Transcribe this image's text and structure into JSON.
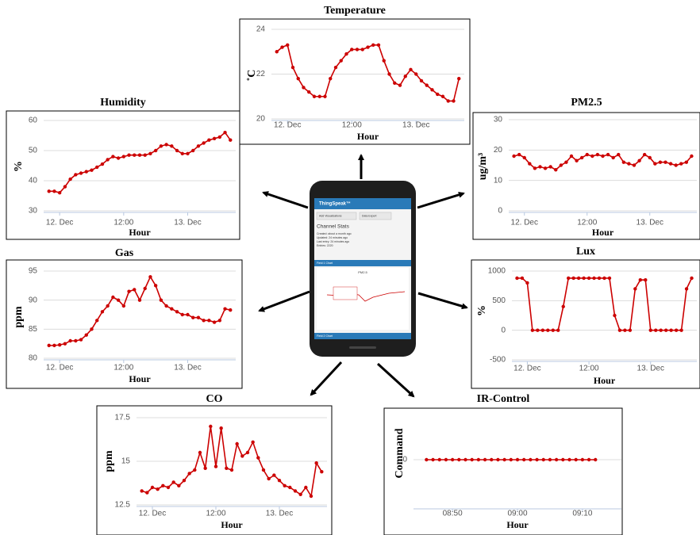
{
  "chart_data": [
    {
      "type": "line",
      "title": "Temperature",
      "xlabel": "Hour",
      "ylabel": "˚C",
      "x": [
        -2,
        -1,
        0,
        1,
        2,
        3,
        4,
        5,
        6,
        7,
        8,
        9,
        10,
        11,
        12,
        13,
        14,
        15,
        16,
        17,
        18,
        19,
        20,
        21,
        22,
        23,
        24,
        25,
        26,
        27,
        28,
        29,
        30,
        31,
        32
      ],
      "series": [
        {
          "color": "#cc0000",
          "values": [
            23.0,
            23.2,
            23.3,
            22.3,
            21.8,
            21.4,
            21.2,
            21.0,
            21.0,
            21.0,
            21.8,
            22.3,
            22.6,
            22.9,
            23.1,
            23.1,
            23.1,
            23.2,
            23.3,
            23.3,
            22.6,
            22.0,
            21.6,
            21.5,
            21.9,
            22.2,
            22.0,
            21.7,
            21.5,
            21.3,
            21.1,
            21.0,
            20.8,
            20.8,
            21.8
          ]
        }
      ],
      "xlim": [
        -3,
        33
      ],
      "ylim": [
        20,
        24
      ],
      "xticks": [
        {
          "value": 0,
          "label": "12. Dec"
        },
        {
          "value": 12,
          "label": "12:00"
        },
        {
          "value": 24,
          "label": "13. Dec"
        }
      ],
      "yticks": [
        20,
        22,
        24
      ],
      "grid": true
    },
    {
      "type": "line",
      "title": "Humidity",
      "xlabel": "Hour",
      "ylabel": "%",
      "x": [
        -2,
        -1,
        0,
        1,
        2,
        3,
        4,
        5,
        6,
        7,
        8,
        9,
        10,
        11,
        12,
        13,
        14,
        15,
        16,
        17,
        18,
        19,
        20,
        21,
        22,
        23,
        24,
        25,
        26,
        27,
        28,
        29,
        30,
        31,
        32
      ],
      "series": [
        {
          "color": "#cc0000",
          "values": [
            36.5,
            36.5,
            36,
            38,
            40.5,
            42,
            42.5,
            43,
            43.5,
            44.5,
            45.5,
            47,
            48,
            47.5,
            48,
            48.5,
            48.5,
            48.5,
            48.5,
            49,
            50,
            51.5,
            52,
            51.5,
            50,
            49,
            49,
            50,
            51.5,
            52.5,
            53.5,
            54,
            54.5,
            56,
            53.5
          ]
        }
      ],
      "xlim": [
        -3,
        33
      ],
      "ylim": [
        30,
        60
      ],
      "xticks": [
        {
          "value": 0,
          "label": "12. Dec"
        },
        {
          "value": 12,
          "label": "12:00"
        },
        {
          "value": 24,
          "label": "13. Dec"
        }
      ],
      "yticks": [
        30,
        40,
        50,
        60
      ],
      "grid": true
    },
    {
      "type": "line",
      "title": "PM2.5",
      "xlabel": "Hour",
      "ylabel": "ug/m³",
      "x": [
        -2,
        -1,
        0,
        1,
        2,
        3,
        4,
        5,
        6,
        7,
        8,
        9,
        10,
        11,
        12,
        13,
        14,
        15,
        16,
        17,
        18,
        19,
        20,
        21,
        22,
        23,
        24,
        25,
        26,
        27,
        28,
        29,
        30,
        31,
        32
      ],
      "series": [
        {
          "color": "#cc0000",
          "values": [
            18,
            18.5,
            17.5,
            15.5,
            14,
            14.5,
            14,
            14.5,
            13.5,
            15,
            16,
            18,
            16.5,
            17.5,
            18.5,
            18,
            18.5,
            18,
            18.5,
            17.5,
            18.5,
            16,
            15.5,
            15,
            16.5,
            18.5,
            17.5,
            15.5,
            16,
            16,
            15.5,
            15,
            15.5,
            16,
            18
          ]
        }
      ],
      "xlim": [
        -3,
        33
      ],
      "ylim": [
        0,
        30
      ],
      "xticks": [
        {
          "value": 0,
          "label": "12. Dec"
        },
        {
          "value": 12,
          "label": "12:00"
        },
        {
          "value": 24,
          "label": "13. Dec"
        }
      ],
      "yticks": [
        0,
        10,
        20,
        30
      ],
      "grid": true
    },
    {
      "type": "line",
      "title": "Gas",
      "xlabel": "Hour",
      "ylabel": "ppm",
      "x": [
        -2,
        -1,
        0,
        1,
        2,
        3,
        4,
        5,
        6,
        7,
        8,
        9,
        10,
        11,
        12,
        13,
        14,
        15,
        16,
        17,
        18,
        19,
        20,
        21,
        22,
        23,
        24,
        25,
        26,
        27,
        28,
        29,
        30,
        31,
        32
      ],
      "series": [
        {
          "color": "#cc0000",
          "values": [
            82.2,
            82.2,
            82.3,
            82.5,
            83,
            83,
            83.2,
            84,
            85,
            86.5,
            88,
            89,
            90.5,
            90,
            89,
            91.5,
            91.8,
            90,
            92,
            94,
            92.5,
            90,
            89,
            88.5,
            88,
            87.5,
            87.5,
            87,
            87,
            86.5,
            86.5,
            86.2,
            86.5,
            88.5,
            88.3
          ]
        }
      ],
      "xlim": [
        -3,
        33
      ],
      "ylim": [
        80,
        95
      ],
      "xticks": [
        {
          "value": 0,
          "label": "12. Dec"
        },
        {
          "value": 12,
          "label": "12:00"
        },
        {
          "value": 24,
          "label": "13. Dec"
        }
      ],
      "yticks": [
        80,
        85,
        90,
        95
      ],
      "grid": true
    },
    {
      "type": "line",
      "title": "Lux",
      "xlabel": "Hour",
      "ylabel": "%",
      "x": [
        -2,
        -1,
        0,
        1,
        2,
        3,
        4,
        5,
        6,
        7,
        8,
        9,
        10,
        11,
        12,
        13,
        14,
        15,
        16,
        17,
        18,
        19,
        20,
        21,
        22,
        23,
        24,
        25,
        26,
        27,
        28,
        29,
        30,
        31,
        32
      ],
      "series": [
        {
          "color": "#cc0000",
          "values": [
            880,
            880,
            800,
            0,
            0,
            0,
            0,
            0,
            0,
            400,
            880,
            880,
            880,
            880,
            880,
            880,
            880,
            880,
            880,
            250,
            0,
            0,
            0,
            700,
            850,
            850,
            0,
            0,
            0,
            0,
            0,
            0,
            0,
            700,
            880
          ]
        }
      ],
      "xlim": [
        -3,
        33
      ],
      "ylim": [
        -500,
        1000
      ],
      "xticks": [
        {
          "value": 0,
          "label": "12. Dec"
        },
        {
          "value": 12,
          "label": "12:00"
        },
        {
          "value": 24,
          "label": "13. Dec"
        }
      ],
      "yticks": [
        -500,
        0,
        500,
        1000
      ],
      "grid": true
    },
    {
      "type": "line",
      "title": "CO",
      "xlabel": "Hour",
      "ylabel": "ppm",
      "x": [
        -2,
        -1,
        0,
        1,
        2,
        3,
        4,
        5,
        6,
        7,
        8,
        9,
        10,
        11,
        12,
        13,
        14,
        15,
        16,
        17,
        18,
        19,
        20,
        21,
        22,
        23,
        24,
        25,
        26,
        27,
        28,
        29,
        30,
        31,
        32
      ],
      "series": [
        {
          "color": "#cc0000",
          "values": [
            13.3,
            13.2,
            13.5,
            13.4,
            13.6,
            13.5,
            13.8,
            13.6,
            13.9,
            14.3,
            14.5,
            15.5,
            14.6,
            17,
            14.7,
            16.9,
            14.6,
            14.5,
            16,
            15.3,
            15.5,
            16.1,
            15.2,
            14.5,
            14,
            14.2,
            13.9,
            13.6,
            13.5,
            13.3,
            13.1,
            13.5,
            13.0,
            14.9,
            14.4
          ]
        }
      ],
      "xlim": [
        -3,
        33
      ],
      "ylim": [
        12.5,
        17.5
      ],
      "xticks": [
        {
          "value": 0,
          "label": "12. Dec"
        },
        {
          "value": 12,
          "label": "12:00"
        },
        {
          "value": 24,
          "label": "13. Dec"
        }
      ],
      "yticks": [
        12.5,
        15,
        17.5
      ],
      "grid": true
    },
    {
      "type": "line",
      "title": "IR-Control",
      "xlabel": "Hour",
      "ylabel": "Command",
      "x": [
        46,
        47,
        48,
        49,
        50,
        51,
        52,
        53,
        54,
        55,
        56,
        57,
        58,
        59,
        60,
        61,
        62,
        63,
        64,
        65,
        66,
        67,
        68,
        69,
        70,
        71,
        72
      ],
      "series": [
        {
          "color": "#cc0000",
          "values": [
            0,
            0,
            0,
            0,
            0,
            0,
            0,
            0,
            0,
            0,
            0,
            0,
            0,
            0,
            0,
            0,
            0,
            0,
            0,
            0,
            0,
            0,
            0,
            0,
            0,
            0,
            0
          ]
        }
      ],
      "xlim": [
        44,
        76
      ],
      "ylim": [
        -1,
        1
      ],
      "xticks": [
        {
          "value": 50,
          "label": "08:50"
        },
        {
          "value": 60,
          "label": "09:00"
        },
        {
          "value": 70,
          "label": "09:10"
        }
      ],
      "yticks": [
        0
      ],
      "grid": true
    }
  ],
  "phone": {
    "app": "ThingSpeak™",
    "buttons": [
      "Add Visualizations",
      "Data Export"
    ],
    "heading": "Channel Stats",
    "stats": [
      "Created: about a month ago",
      "Updated: 24 minutes ago",
      "Last entry: 24 minutes ago",
      "Entries: 2220"
    ],
    "fields": [
      "Field 1 Chart",
      "Field 2 Chart"
    ],
    "chart_title": "PM2.5"
  }
}
